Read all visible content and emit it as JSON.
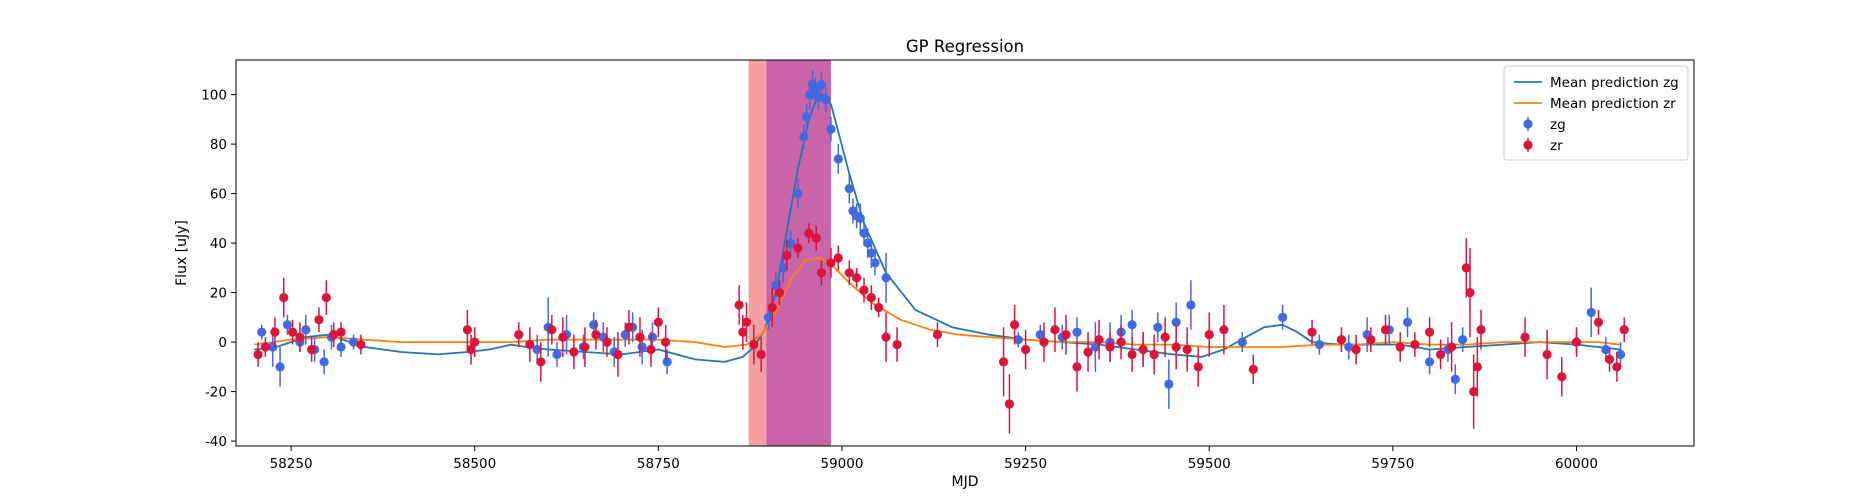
{
  "chart_data": {
    "type": "scatter",
    "title": "GP Regression",
    "xlabel": "MJD",
    "ylabel": "Flux [uJy]",
    "xlim": [
      58175,
      60160
    ],
    "ylim": [
      -42,
      114
    ],
    "xticks": [
      58250,
      58500,
      58750,
      59000,
      59250,
      59500,
      59750,
      60000
    ],
    "yticks": [
      -40,
      -20,
      0,
      20,
      40,
      60,
      80,
      100
    ],
    "grid": false,
    "legend_position": "top-right",
    "shaded_regions": [
      {
        "x": [
          58873,
          58897
        ],
        "color": "#f08080",
        "opacity": 0.75
      },
      {
        "x": [
          58897,
          58985
        ],
        "color": "#b8388f",
        "opacity": 0.78
      }
    ],
    "series": [
      {
        "name": "Mean prediction zg",
        "kind": "line",
        "color": "#1f77b4",
        "x": [
          58200,
          58230,
          58270,
          58300,
          58350,
          58400,
          58450,
          58490,
          58520,
          58550,
          58570,
          58600,
          58650,
          58700,
          58750,
          58800,
          58840,
          58865,
          58880,
          58895,
          58910,
          58925,
          58940,
          58955,
          58965,
          58975,
          58985,
          58995,
          59010,
          59030,
          59060,
          59100,
          59150,
          59200,
          59250,
          59300,
          59350,
          59400,
          59450,
          59490,
          59520,
          59550,
          59575,
          59600,
          59620,
          59640,
          59680,
          59720,
          59760,
          59800,
          59850,
          59900,
          59950,
          60000,
          60030,
          60060
        ],
        "y": [
          -3,
          -2,
          2,
          3,
          -2,
          -4,
          -5,
          -4,
          -3,
          -1,
          -2,
          -3,
          -4,
          -5,
          -3,
          -7,
          -8,
          -6,
          -2,
          5,
          20,
          45,
          70,
          90,
          98,
          100,
          96,
          85,
          68,
          48,
          28,
          13,
          6,
          3,
          1,
          0,
          -1,
          -3,
          -5,
          -6,
          -3,
          2,
          6,
          7,
          4,
          0,
          -1,
          -1,
          -1,
          -3,
          -2,
          -1,
          0,
          -1,
          -2,
          -3
        ]
      },
      {
        "name": "Mean prediction zr",
        "kind": "line",
        "color": "#ff7f0e",
        "x": [
          58200,
          58250,
          58300,
          58350,
          58400,
          58450,
          58500,
          58550,
          58600,
          58650,
          58700,
          58750,
          58800,
          58840,
          58870,
          58890,
          58910,
          58930,
          58950,
          58970,
          58990,
          59010,
          59040,
          59080,
          59120,
          59160,
          59200,
          59250,
          59300,
          59350,
          59400,
          59450,
          59500,
          59550,
          59600,
          59650,
          59700,
          59750,
          59800,
          59850,
          59900,
          59950,
          60000,
          60030,
          60060
        ],
        "y": [
          -1,
          1,
          2,
          1,
          0,
          0,
          0,
          0,
          1,
          1,
          1,
          1,
          0,
          -2,
          -1,
          3,
          12,
          25,
          33,
          34,
          30,
          24,
          16,
          9,
          5,
          3,
          2,
          1,
          0,
          0,
          -1,
          -1,
          -2,
          -2,
          -2,
          -1,
          -1,
          0,
          -1,
          -1,
          0,
          0,
          0,
          0,
          -1
        ]
      },
      {
        "name": "zg",
        "kind": "errorbar",
        "color": "#4169e1",
        "x": [
          58210,
          58225,
          58235,
          58245,
          58262,
          58270,
          58282,
          58295,
          58305,
          58318,
          58335,
          58585,
          58600,
          58612,
          58625,
          58648,
          58662,
          58675,
          58690,
          58705,
          58715,
          58728,
          58742,
          58762,
          58900,
          58910,
          58920,
          58930,
          58940,
          58948,
          58952,
          58956,
          58960,
          58964,
          58968,
          58972,
          58978,
          58985,
          58995,
          59010,
          59015,
          59020,
          59025,
          59030,
          59035,
          59040,
          59045,
          59060,
          59240,
          59270,
          59300,
          59320,
          59345,
          59365,
          59380,
          59395,
          59410,
          59430,
          59445,
          59455,
          59475,
          59545,
          59600,
          59650,
          59690,
          59715,
          59745,
          59770,
          59800,
          59825,
          59835,
          59845,
          60000,
          60020,
          60040,
          60060
        ],
        "y": [
          4,
          -2,
          -10,
          7,
          0,
          5,
          -3,
          -8,
          2,
          -2,
          0,
          -3,
          6,
          -5,
          3,
          -2,
          7,
          2,
          -4,
          3,
          6,
          -2,
          2,
          -8,
          10,
          23,
          30,
          40,
          60,
          83,
          91,
          100,
          104,
          102,
          99,
          104,
          98,
          86,
          74,
          62,
          53,
          51,
          50,
          44,
          40,
          36,
          32,
          26,
          1,
          3,
          2,
          4,
          -2,
          0,
          4,
          7,
          -3,
          6,
          -17,
          8,
          15,
          0,
          10,
          -1,
          -2,
          3,
          5,
          8,
          -8,
          -3,
          -15,
          1,
          0,
          12,
          -3,
          -5
        ],
        "err": [
          3,
          8,
          8,
          4,
          4,
          6,
          5,
          5,
          5,
          4,
          3,
          6,
          12,
          5,
          8,
          5,
          5,
          6,
          6,
          5,
          6,
          7,
          6,
          5,
          5,
          5,
          6,
          5,
          6,
          5,
          5,
          6,
          6,
          5,
          5,
          5,
          5,
          5,
          6,
          6,
          5,
          5,
          6,
          5,
          6,
          6,
          5,
          10,
          3,
          4,
          5,
          6,
          10,
          8,
          7,
          6,
          7,
          6,
          10,
          8,
          10,
          4,
          5,
          4,
          5,
          7,
          6,
          6,
          5,
          5,
          6,
          5,
          4,
          10,
          5,
          5
        ],
        "marker": "o"
      },
      {
        "name": "zr",
        "kind": "errorbar",
        "color": "#dc143c",
        "x": [
          58205,
          58215,
          58228,
          58240,
          58252,
          58262,
          58278,
          58288,
          58298,
          58308,
          58318,
          58345,
          58490,
          58495,
          58500,
          58560,
          58575,
          58590,
          58605,
          58620,
          58635,
          58650,
          58665,
          58680,
          58695,
          58710,
          58725,
          58740,
          58750,
          58760,
          58860,
          58865,
          58870,
          58880,
          58890,
          58905,
          58915,
          58925,
          58940,
          58955,
          58965,
          58972,
          58985,
          58995,
          59010,
          59020,
          59030,
          59040,
          59050,
          59060,
          59075,
          59130,
          59220,
          59228,
          59235,
          59250,
          59275,
          59290,
          59305,
          59320,
          59335,
          59350,
          59365,
          59380,
          59395,
          59410,
          59425,
          59440,
          59455,
          59470,
          59485,
          59500,
          59520,
          59560,
          59640,
          59680,
          59700,
          59720,
          59740,
          59760,
          59780,
          59800,
          59815,
          59830,
          59850,
          59855,
          59860,
          59865,
          59870,
          59930,
          59960,
          59980,
          60000,
          60030,
          60045,
          60055,
          60065
        ],
        "y": [
          -5,
          -2,
          4,
          18,
          4,
          2,
          -3,
          9,
          18,
          3,
          4,
          -1,
          5,
          -3,
          0,
          3,
          -1,
          -8,
          5,
          2,
          -4,
          -2,
          3,
          0,
          -5,
          6,
          2,
          -3,
          8,
          0,
          15,
          4,
          8,
          -1,
          -5,
          14,
          20,
          35,
          38,
          44,
          42,
          28,
          32,
          34,
          28,
          26,
          21,
          18,
          14,
          2,
          -1,
          3,
          -8,
          -25,
          7,
          -3,
          0,
          5,
          3,
          -10,
          -4,
          1,
          -2,
          0,
          -5,
          -3,
          -5,
          2,
          -2,
          -3,
          -10,
          3,
          5,
          -11,
          4,
          1,
          -3,
          1,
          5,
          -2,
          -1,
          4,
          -5,
          -2,
          30,
          20,
          -20,
          -10,
          5,
          2,
          -5,
          -14,
          0,
          8,
          -7,
          -10,
          5
        ],
        "err": [
          5,
          4,
          6,
          8,
          5,
          6,
          5,
          5,
          7,
          5,
          4,
          4,
          8,
          6,
          6,
          5,
          7,
          8,
          6,
          8,
          7,
          8,
          6,
          6,
          9,
          7,
          8,
          7,
          6,
          7,
          8,
          7,
          8,
          8,
          7,
          8,
          5,
          6,
          4,
          4,
          5,
          5,
          6,
          5,
          5,
          4,
          5,
          5,
          4,
          10,
          7,
          5,
          14,
          12,
          8,
          8,
          8,
          9,
          8,
          10,
          8,
          8,
          6,
          7,
          7,
          7,
          8,
          8,
          9,
          9,
          8,
          9,
          10,
          6,
          5,
          5,
          6,
          5,
          6,
          6,
          5,
          6,
          6,
          10,
          12,
          18,
          15,
          12,
          8,
          8,
          10,
          8,
          6,
          5,
          5,
          6,
          5
        ],
        "marker": "o"
      }
    ]
  }
}
